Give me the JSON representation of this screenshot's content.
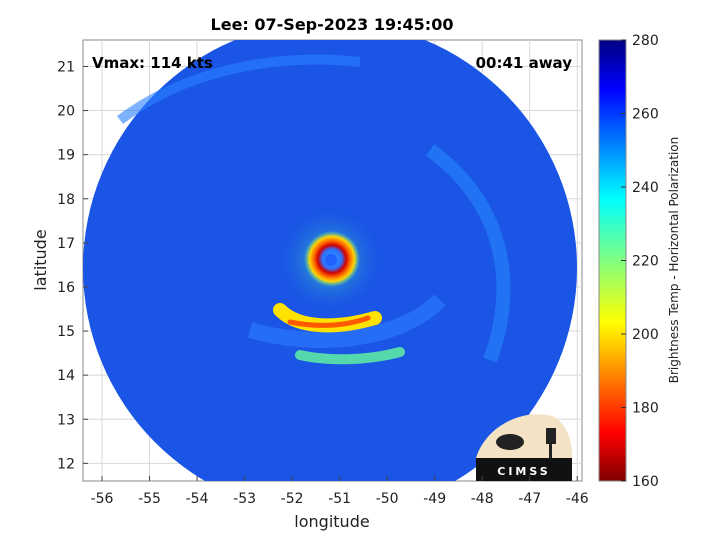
{
  "title": "Lee: 07-Sep-2023 19:45:00",
  "vmax_label": "Vmax: 114 kts",
  "away_label": "00:41 away",
  "xlabel": "longitude",
  "ylabel": "latitude",
  "colorbar_label": "Brightness Temp - Horizontal Polarization",
  "logo_text": "CIMSS",
  "colors": {
    "background_field": "#1a50e0",
    "eye": "#1e6cf0",
    "eyewall": "#c80000"
  },
  "chart_data": {
    "type": "heatmap",
    "title": "Lee: 07-Sep-2023 19:45:00",
    "xlabel": "longitude",
    "ylabel": "latitude",
    "xlim": [
      -56.4,
      -45.9
    ],
    "ylim": [
      11.6,
      21.6
    ],
    "x_ticks": [
      -56,
      -55,
      -54,
      -53,
      -52,
      -51,
      -50,
      -49,
      -48,
      -47,
      -46
    ],
    "y_ticks": [
      12,
      13,
      14,
      15,
      16,
      17,
      18,
      19,
      20,
      21
    ],
    "grid": true,
    "colorbar": {
      "label": "Brightness Temp - Horizontal Polarization",
      "range": [
        160,
        280
      ],
      "ticks": [
        160,
        180,
        200,
        220,
        240,
        260,
        280
      ],
      "colormap": "jet"
    },
    "storm": {
      "name": "Lee",
      "center_lon": -51.1,
      "center_lat": 16.6,
      "vmax_kts": 114
    }
  }
}
